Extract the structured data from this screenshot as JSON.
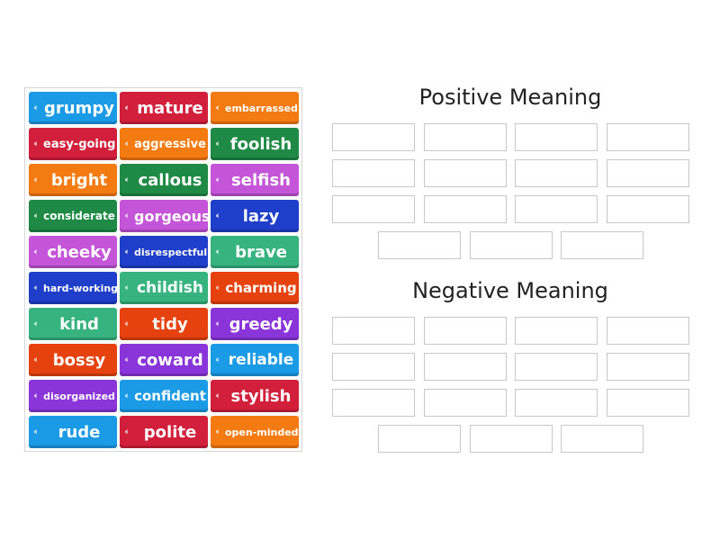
{
  "cards": [
    {
      "label": "grumpy",
      "color": "#1b9ae6",
      "size": 18
    },
    {
      "label": "mature",
      "color": "#d21f3c",
      "size": 18
    },
    {
      "label": "embarrassed",
      "color": "#f47b12",
      "size": 11
    },
    {
      "label": "easy-going",
      "color": "#d21f3c",
      "size": 13
    },
    {
      "label": "aggressive",
      "color": "#f47b12",
      "size": 13
    },
    {
      "label": "foolish",
      "color": "#1e8a45",
      "size": 18
    },
    {
      "label": "bright",
      "color": "#f47b12",
      "size": 18
    },
    {
      "label": "callous",
      "color": "#1e8a45",
      "size": 18
    },
    {
      "label": "selfish",
      "color": "#c454d8",
      "size": 18
    },
    {
      "label": "considerate",
      "color": "#1e8a45",
      "size": 12
    },
    {
      "label": "gorgeous",
      "color": "#c454d8",
      "size": 16
    },
    {
      "label": "lazy",
      "color": "#1f3ec9",
      "size": 18
    },
    {
      "label": "cheeky",
      "color": "#c454d8",
      "size": 18
    },
    {
      "label": "disrespectful",
      "color": "#1f3ec9",
      "size": 11
    },
    {
      "label": "brave",
      "color": "#36b37e",
      "size": 18
    },
    {
      "label": "hard-working",
      "color": "#1f3ec9",
      "size": 11
    },
    {
      "label": "childish",
      "color": "#36b37e",
      "size": 17
    },
    {
      "label": "charming",
      "color": "#e5420f",
      "size": 15
    },
    {
      "label": "kind",
      "color": "#36b37e",
      "size": 18
    },
    {
      "label": "tidy",
      "color": "#e5420f",
      "size": 18
    },
    {
      "label": "greedy",
      "color": "#8a35d9",
      "size": 18
    },
    {
      "label": "bossy",
      "color": "#e5420f",
      "size": 18
    },
    {
      "label": "coward",
      "color": "#8a35d9",
      "size": 18
    },
    {
      "label": "reliable",
      "color": "#1b9ae6",
      "size": 17
    },
    {
      "label": "disorganized",
      "color": "#8a35d9",
      "size": 11
    },
    {
      "label": "confident",
      "color": "#1b9ae6",
      "size": 15
    },
    {
      "label": "stylish",
      "color": "#d21f3c",
      "size": 18
    },
    {
      "label": "rude",
      "color": "#1b9ae6",
      "size": 18
    },
    {
      "label": "polite",
      "color": "#d21f3c",
      "size": 18
    },
    {
      "label": "open-minded",
      "color": "#f47b12",
      "size": 11
    }
  ],
  "groups": [
    {
      "title": "Positive Meaning",
      "slots": 15
    },
    {
      "title": "Negative Meaning",
      "slots": 15
    }
  ],
  "icons": {
    "card": "speaker-icon"
  }
}
